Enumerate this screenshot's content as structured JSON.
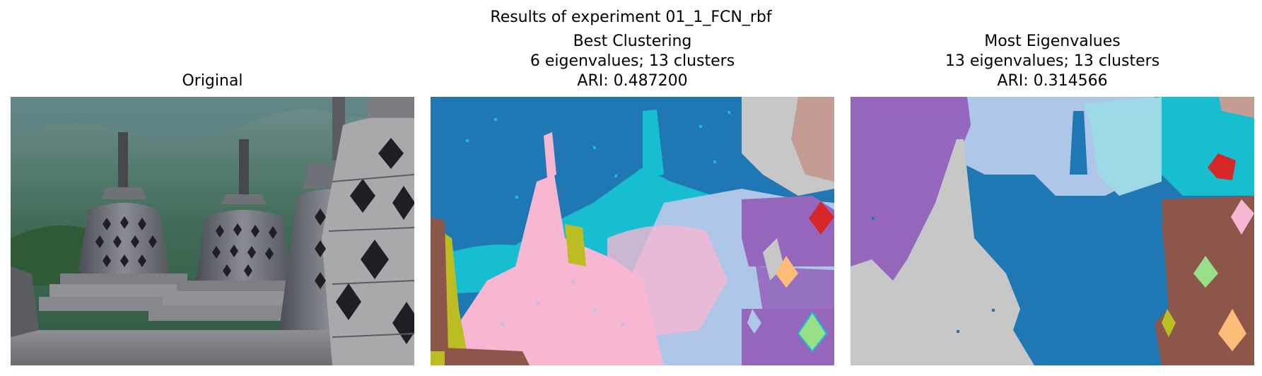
{
  "figure": {
    "suptitle": "Results of experiment 01_1_FCN_rbf"
  },
  "panels": [
    {
      "title_lines": [
        "Original"
      ],
      "image": "photograph of stupa bells at a temple with forested mountains behind"
    },
    {
      "title_lines": [
        "Best Clustering",
        "6 eigenvalues; 13 clusters",
        "ARI: 0.487200"
      ],
      "image": "segmentation map with 13 color-coded clusters"
    },
    {
      "title_lines": [
        "Most Eigenvalues",
        "13 eigenvalues; 13 clusters",
        "ARI: 0.314566"
      ],
      "image": "segmentation map with 13 color-coded clusters"
    }
  ],
  "palette": {
    "blue": "#1f77b4",
    "light_blue": "#aec7e8",
    "cyan": "#17becf",
    "light_cyan": "#9edae5",
    "pink": "#f7b6d2",
    "purple": "#9467bd",
    "brown": "#8c564b",
    "salmon": "#c49c94",
    "gray": "#c7c7c7",
    "olive": "#bcbd22",
    "red": "#d62728",
    "orange": "#ffbb78",
    "green": "#98df8a"
  }
}
